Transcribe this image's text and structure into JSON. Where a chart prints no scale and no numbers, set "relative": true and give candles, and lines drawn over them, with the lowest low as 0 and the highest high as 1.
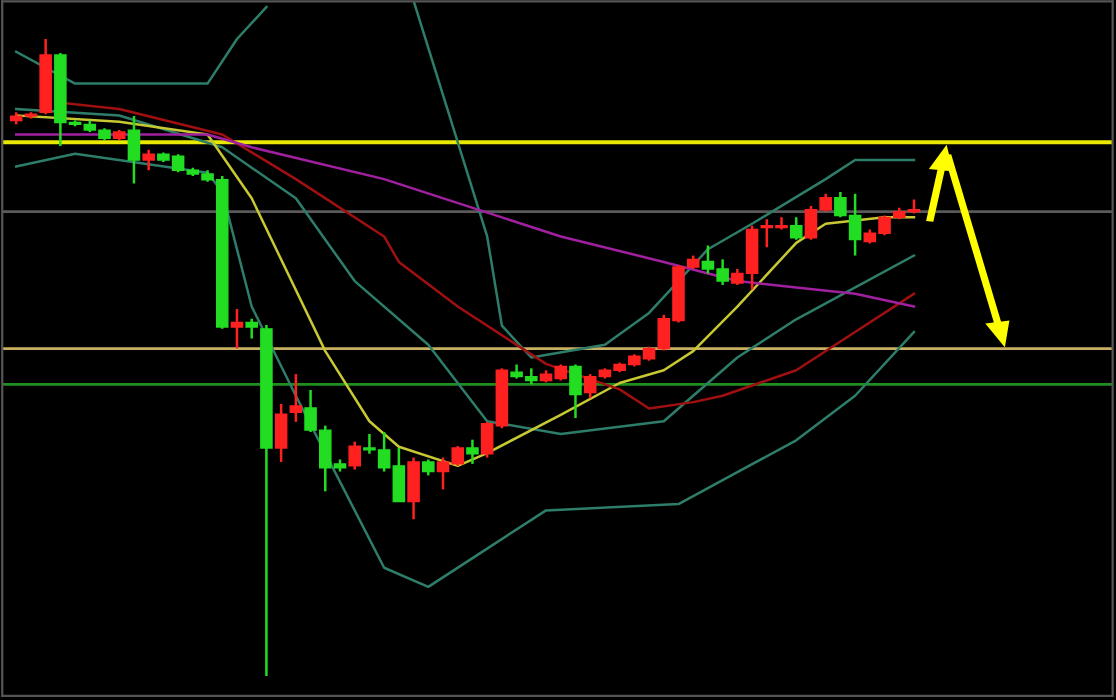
{
  "chart_data": {
    "type": "candlestick",
    "relative": true,
    "categories": [
      null,
      null,
      null,
      null,
      null,
      null,
      null,
      null,
      null,
      null,
      null,
      null,
      null,
      null,
      null,
      null,
      null,
      null,
      null,
      null,
      null,
      null,
      null,
      null,
      null,
      null,
      null,
      null,
      null,
      null,
      null,
      null,
      null,
      null,
      null,
      null,
      null,
      null,
      null,
      null,
      null,
      null,
      null,
      null,
      null,
      null,
      null,
      null,
      null,
      null,
      null,
      null,
      null,
      null,
      null,
      null,
      null,
      null,
      null,
      null,
      null,
      null
    ],
    "ohlc": [
      [
        0.872,
        0.885,
        0.866,
        0.879
      ],
      [
        0.879,
        0.885,
        0.875,
        0.882
      ],
      [
        0.885,
        1.0,
        0.882,
        0.975
      ],
      [
        0.975,
        0.978,
        0.832,
        0.869
      ],
      [
        0.869,
        0.872,
        0.863,
        0.866
      ],
      [
        0.866,
        0.872,
        0.854,
        0.857
      ],
      [
        0.857,
        0.86,
        0.841,
        0.844
      ],
      [
        0.844,
        0.857,
        0.841,
        0.854
      ],
      [
        0.857,
        0.879,
        0.773,
        0.81
      ],
      [
        0.81,
        0.826,
        0.794,
        0.819
      ],
      [
        0.819,
        0.822,
        0.807,
        0.81
      ],
      [
        0.816,
        0.819,
        0.791,
        0.794
      ],
      [
        0.794,
        0.798,
        0.785,
        0.788
      ],
      [
        0.788,
        0.794,
        0.776,
        0.779
      ],
      [
        0.779,
        0.785,
        0.545,
        0.548
      ],
      [
        0.548,
        0.576,
        0.514,
        0.555
      ],
      [
        0.555,
        0.561,
        0.53,
        0.548
      ],
      [
        0.545,
        0.551,
        0.0,
        0.358
      ],
      [
        0.358,
        0.427,
        0.336,
        0.411
      ],
      [
        0.414,
        0.474,
        0.399,
        0.424
      ],
      [
        0.421,
        0.449,
        0.383,
        0.386
      ],
      [
        0.386,
        0.393,
        0.29,
        0.327
      ],
      [
        0.333,
        0.34,
        0.321,
        0.327
      ],
      [
        0.33,
        0.368,
        0.324,
        0.361
      ],
      [
        0.358,
        0.38,
        0.349,
        0.355
      ],
      [
        0.355,
        0.383,
        0.321,
        0.327
      ],
      [
        0.33,
        0.358,
        0.274,
        0.274
      ],
      [
        0.274,
        0.343,
        0.246,
        0.336
      ],
      [
        0.336,
        0.34,
        0.315,
        0.321
      ],
      [
        0.321,
        0.343,
        0.293,
        0.336
      ],
      [
        0.333,
        0.361,
        0.33,
        0.358
      ],
      [
        0.358,
        0.371,
        0.333,
        0.349
      ],
      [
        0.349,
        0.399,
        0.343,
        0.396
      ],
      [
        0.393,
        0.483,
        0.389,
        0.48
      ],
      [
        0.477,
        0.489,
        0.467,
        0.47
      ],
      [
        0.47,
        0.483,
        0.458,
        0.464
      ],
      [
        0.464,
        0.48,
        0.461,
        0.474
      ],
      [
        0.467,
        0.489,
        0.464,
        0.486
      ],
      [
        0.486,
        0.489,
        0.405,
        0.442
      ],
      [
        0.445,
        0.474,
        0.436,
        0.47
      ],
      [
        0.47,
        0.483,
        0.467,
        0.48
      ],
      [
        0.48,
        0.492,
        0.477,
        0.489
      ],
      [
        0.489,
        0.505,
        0.486,
        0.502
      ],
      [
        0.498,
        0.517,
        0.495,
        0.514
      ],
      [
        0.514,
        0.567,
        0.511,
        0.561
      ],
      [
        0.558,
        0.645,
        0.555,
        0.642
      ],
      [
        0.642,
        0.66,
        0.639,
        0.654
      ],
      [
        0.651,
        0.676,
        0.632,
        0.639
      ],
      [
        0.639,
        0.654,
        0.614,
        0.62
      ],
      [
        0.617,
        0.639,
        0.614,
        0.632
      ],
      [
        0.632,
        0.707,
        0.607,
        0.701
      ],
      [
        0.704,
        0.717,
        0.673,
        0.707
      ],
      [
        0.704,
        0.72,
        0.701,
        0.707
      ],
      [
        0.707,
        0.72,
        0.685,
        0.688
      ],
      [
        0.688,
        0.738,
        0.685,
        0.732
      ],
      [
        0.732,
        0.757,
        0.729,
        0.751
      ],
      [
        0.751,
        0.76,
        0.72,
        0.723
      ],
      [
        0.723,
        0.757,
        0.66,
        0.685
      ],
      [
        0.682,
        0.701,
        0.679,
        0.695
      ],
      [
        0.695,
        0.723,
        0.692,
        0.72
      ],
      [
        0.72,
        0.735,
        0.717,
        0.729
      ],
      [
        0.729,
        0.748,
        0.726,
        0.732
      ]
    ],
    "colors": [
      "#ff2020",
      "#ff2020",
      "#ff2020",
      "#22dd22",
      "#22dd22",
      "#22dd22",
      "#22dd22",
      "#ff2020",
      "#22dd22",
      "#ff2020",
      "#22dd22",
      "#22dd22",
      "#22dd22",
      "#22dd22",
      "#22dd22",
      "#ff2020",
      "#22dd22",
      "#22dd22",
      "#ff2020",
      "#ff2020",
      "#22dd22",
      "#22dd22",
      "#22dd22",
      "#ff2020",
      "#22dd22",
      "#22dd22",
      "#22dd22",
      "#ff2020",
      "#22dd22",
      "#ff2020",
      "#ff2020",
      "#22dd22",
      "#ff2020",
      "#ff2020",
      "#22dd22",
      "#22dd22",
      "#ff2020",
      "#ff2020",
      "#22dd22",
      "#ff2020",
      "#ff2020",
      "#ff2020",
      "#ff2020",
      "#ff2020",
      "#ff2020",
      "#ff2020",
      "#ff2020",
      "#22dd22",
      "#22dd22",
      "#ff2020",
      "#ff2020",
      "#ff2020",
      "#ff2020",
      "#22dd22",
      "#ff2020",
      "#ff2020",
      "#22dd22",
      "#22dd22",
      "#ff2020",
      "#ff2020",
      "#ff2020",
      "#ff2020"
    ],
    "series": [
      {
        "type": "line",
        "color": "#2e7d6a",
        "values": [
          0.98,
          null,
          null,
          null,
          0.93,
          null,
          null,
          null,
          null,
          null,
          null,
          null,
          null,
          0.93,
          null,
          1.0,
          null,
          1.05,
          null,
          null,
          null,
          null,
          null,
          null,
          null,
          null,
          null,
          null,
          null,
          null,
          null,
          null,
          null,
          null,
          null,
          null,
          null,
          null,
          null,
          null,
          null,
          null,
          null,
          null,
          null,
          null,
          null,
          null,
          null,
          null,
          null,
          null,
          null,
          null,
          null,
          null,
          null,
          null,
          null,
          null,
          null,
          null
        ]
      },
      {
        "type": "line",
        "color": "#2e7d6a",
        "values": [
          null,
          null,
          null,
          null,
          null,
          null,
          null,
          null,
          null,
          null,
          null,
          null,
          null,
          null,
          null,
          null,
          null,
          null,
          null,
          null,
          null,
          null,
          null,
          null,
          null,
          null,
          null,
          1.06,
          null,
          null,
          null,
          null,
          0.69,
          0.55,
          null,
          0.5,
          null,
          null,
          null,
          null,
          0.52,
          null,
          null,
          0.57,
          null,
          null,
          null,
          0.67,
          null,
          null,
          0.71,
          null,
          null,
          null,
          null,
          0.78,
          null,
          0.81,
          null,
          null,
          null,
          0.81
        ]
      },
      {
        "type": "line",
        "color": "#2e7d6a",
        "values": [
          0.89,
          null,
          null,
          null,
          null,
          null,
          null,
          0.88,
          null,
          null,
          null,
          null,
          null,
          null,
          0.83,
          null,
          null,
          null,
          null,
          0.75,
          null,
          null,
          null,
          0.62,
          null,
          null,
          null,
          null,
          0.52,
          null,
          null,
          null,
          0.4,
          null,
          null,
          null,
          null,
          0.38,
          null,
          null,
          null,
          null,
          null,
          null,
          0.4,
          null,
          null,
          null,
          null,
          0.5,
          null,
          null,
          null,
          0.56,
          null,
          null,
          null,
          null,
          null,
          null,
          null,
          0.66
        ]
      },
      {
        "type": "line",
        "color": "#2e7d6a",
        "values": [
          0.8,
          null,
          null,
          null,
          0.82,
          null,
          null,
          null,
          null,
          null,
          null,
          null,
          null,
          0.79,
          0.76,
          null,
          0.58,
          null,
          null,
          0.44,
          null,
          null,
          null,
          null,
          null,
          0.17,
          null,
          null,
          0.14,
          null,
          null,
          null,
          0.2,
          null,
          null,
          null,
          0.26,
          null,
          null,
          null,
          null,
          null,
          null,
          null,
          null,
          0.27,
          null,
          null,
          null,
          0.32,
          null,
          null,
          null,
          0.37,
          null,
          null,
          null,
          0.44,
          null,
          null,
          null,
          0.54
        ]
      },
      {
        "type": "line",
        "color": "#c8c832",
        "values": [
          0.88,
          null,
          null,
          null,
          null,
          null,
          null,
          0.87,
          null,
          null,
          null,
          null,
          null,
          0.85,
          null,
          null,
          0.75,
          null,
          null,
          null,
          null,
          0.51,
          null,
          null,
          0.4,
          null,
          0.36,
          null,
          null,
          null,
          0.33,
          null,
          0.35,
          null,
          null,
          null,
          null,
          0.41,
          null,
          null,
          null,
          0.46,
          null,
          null,
          0.48,
          null,
          0.51,
          null,
          null,
          0.58,
          null,
          null,
          null,
          0.68,
          null,
          0.71,
          null,
          null,
          null,
          0.72,
          null,
          0.72
        ]
      },
      {
        "type": "line",
        "color": "#a01010",
        "values": [
          null,
          null,
          null,
          0.9,
          null,
          null,
          null,
          0.89,
          null,
          null,
          null,
          null,
          null,
          null,
          0.85,
          null,
          null,
          null,
          null,
          0.78,
          null,
          null,
          null,
          null,
          null,
          0.69,
          0.65,
          null,
          null,
          null,
          0.58,
          null,
          null,
          null,
          null,
          null,
          0.49,
          null,
          null,
          null,
          null,
          0.45,
          null,
          0.42,
          null,
          null,
          0.43,
          null,
          0.44,
          null,
          null,
          null,
          null,
          0.48,
          null,
          null,
          null,
          0.54,
          null,
          null,
          null,
          0.6
        ]
      },
      {
        "type": "line",
        "color": "#a020a0",
        "values": [
          0.85,
          null,
          null,
          null,
          null,
          null,
          null,
          null,
          null,
          null,
          null,
          null,
          null,
          0.85,
          null,
          null,
          0.83,
          null,
          null,
          null,
          null,
          null,
          null,
          null,
          null,
          0.78,
          null,
          null,
          null,
          null,
          null,
          null,
          null,
          null,
          null,
          null,
          null,
          0.69,
          null,
          null,
          null,
          null,
          null,
          null,
          0.65,
          null,
          null,
          null,
          null,
          0.62,
          null,
          null,
          null,
          0.61,
          null,
          null,
          null,
          0.6,
          null,
          null,
          null,
          0.58
        ]
      }
    ],
    "ref_lines": [
      {
        "axis": "y",
        "value": 0.838,
        "color": "#e8e800"
      },
      {
        "axis": "y",
        "value": 0.729,
        "color": "#5a5a5a"
      },
      {
        "axis": "y",
        "value": 0.514,
        "color": "#c8b060"
      },
      {
        "axis": "y",
        "value": 0.458,
        "color": "#1f8f1f"
      }
    ]
  }
}
